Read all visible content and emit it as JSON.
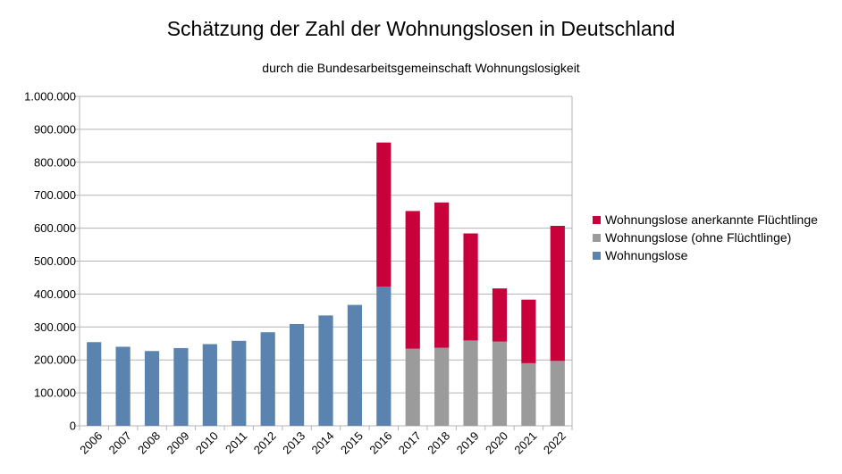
{
  "chart_data": {
    "type": "bar",
    "stacked": true,
    "title": "Schätzung der Zahl der Wohnungslosen in Deutschland",
    "subtitle": "durch die Bundesarbeitsgemeinschaft Wohnungslosigkeit",
    "xlabel": "",
    "ylabel": "",
    "ylim": [
      0,
      1000000
    ],
    "yticks": [
      0,
      100000,
      200000,
      300000,
      400000,
      500000,
      600000,
      700000,
      800000,
      900000,
      1000000
    ],
    "ytick_labels": [
      "0",
      "100.000",
      "200.000",
      "300.000",
      "400.000",
      "500.000",
      "600.000",
      "700.000",
      "800.000",
      "900.000",
      "1.000.000"
    ],
    "grid": true,
    "legend_position": "right",
    "categories": [
      "2006",
      "2007",
      "2008",
      "2009",
      "2010",
      "2011",
      "2012",
      "2013",
      "2014",
      "2015",
      "2016",
      "2017",
      "2018",
      "2019",
      "2020",
      "2021",
      "2022"
    ],
    "series": [
      {
        "name": "Wohnungslose",
        "color": "#5b83b0",
        "values": [
          254000,
          240000,
          227000,
          236000,
          248000,
          258000,
          284000,
          309000,
          335000,
          367000,
          422000,
          0,
          0,
          0,
          0,
          0,
          0
        ]
      },
      {
        "name": "Wohnungslose (ohne Flüchtlinge)",
        "color": "#9b9b9b",
        "values": [
          0,
          0,
          0,
          0,
          0,
          0,
          0,
          0,
          0,
          0,
          0,
          234000,
          237000,
          259000,
          256000,
          190000,
          197000
        ]
      },
      {
        "name": "Wohnungslose anerkannte Flüchtlinge",
        "color": "#c8003c",
        "values": [
          0,
          0,
          0,
          0,
          0,
          0,
          0,
          0,
          0,
          0,
          438000,
          418000,
          441000,
          325000,
          161000,
          193000,
          410000
        ]
      }
    ],
    "legend_order": [
      "Wohnungslose anerkannte Flüchtlinge",
      "Wohnungslose (ohne Flüchtlinge)",
      "Wohnungslose"
    ]
  }
}
